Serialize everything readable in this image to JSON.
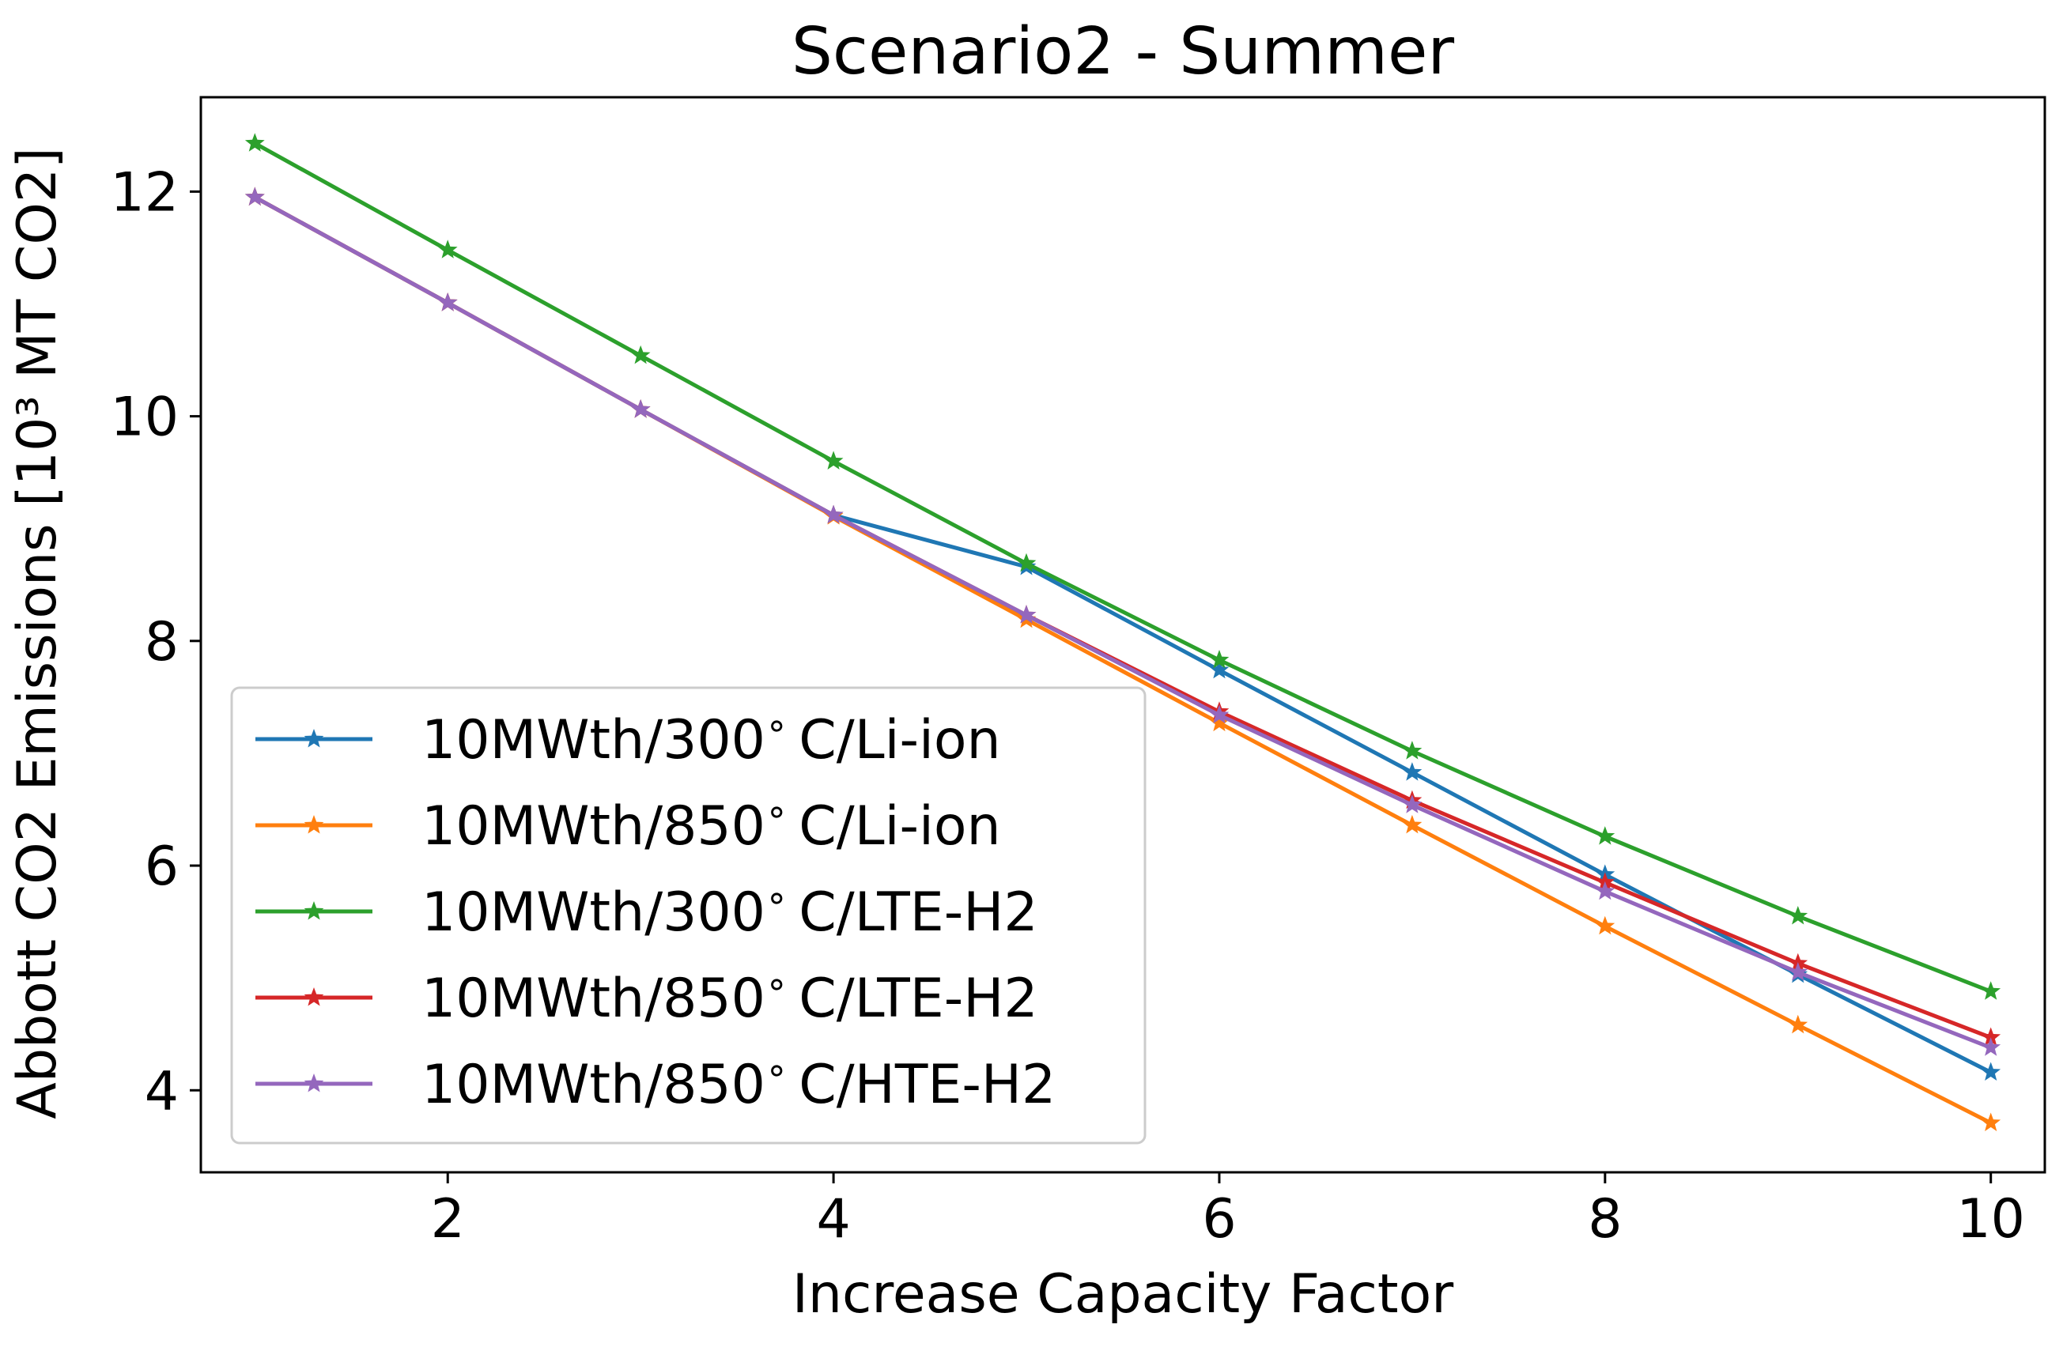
{
  "chart_data": {
    "type": "line",
    "title": "Scenario2 - Summer",
    "xlabel": "Increase Capacity Factor",
    "ylabel": "Abbott CO2 Emissions [10³ MT CO2]",
    "xlim": [
      0.72,
      10.28
    ],
    "ylim": [
      3.27,
      12.84
    ],
    "x_ticks": [
      2,
      4,
      6,
      8,
      10
    ],
    "y_ticks": [
      4,
      6,
      8,
      10,
      12
    ],
    "grid": false,
    "legend_position": "lower-left",
    "marker": "star",
    "x": [
      1,
      2,
      3,
      4,
      5,
      6,
      7,
      8,
      9,
      10
    ],
    "series": [
      {
        "name": "10MWth/300$^\\circ$C/Li-ion",
        "color": "#1f77b4",
        "values": [
          11.95,
          11.01,
          10.06,
          9.12,
          8.66,
          7.74,
          6.83,
          5.92,
          5.03,
          4.16
        ]
      },
      {
        "name": "10MWth/850$^\\circ$C/Li-ion",
        "color": "#ff7f0e",
        "values": [
          11.95,
          11.01,
          10.06,
          9.11,
          8.19,
          7.27,
          6.36,
          5.46,
          4.58,
          3.71
        ]
      },
      {
        "name": "10MWth/300$^\\circ$C/LTE-H2",
        "color": "#2ca02c",
        "values": [
          12.43,
          11.48,
          10.54,
          9.6,
          8.69,
          7.83,
          7.02,
          6.26,
          5.55,
          4.88
        ]
      },
      {
        "name": "10MWth/850$^\\circ$C/LTE-H2",
        "color": "#d62728",
        "values": [
          11.95,
          11.01,
          10.06,
          9.12,
          8.23,
          7.37,
          6.58,
          5.85,
          5.13,
          4.47
        ]
      },
      {
        "name": "10MWth/850$^\\circ$C/HTE-H2",
        "color": "#9467bd",
        "values": [
          11.95,
          11.01,
          10.06,
          9.12,
          8.23,
          7.34,
          6.54,
          5.77,
          5.05,
          4.38
        ]
      }
    ]
  }
}
